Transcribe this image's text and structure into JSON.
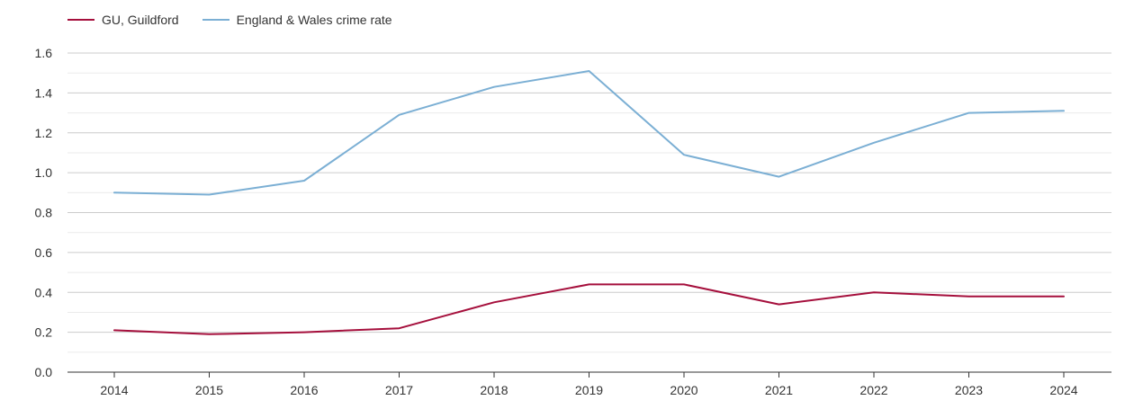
{
  "chart_data": {
    "type": "line",
    "title": "",
    "xlabel": "",
    "ylabel": "",
    "categories": [
      "2014",
      "2015",
      "2016",
      "2017",
      "2018",
      "2019",
      "2020",
      "2021",
      "2022",
      "2023",
      "2024"
    ],
    "ylim": [
      0,
      1.6
    ],
    "yticks": [
      "0.0",
      "0.2",
      "0.4",
      "0.6",
      "0.8",
      "1.0",
      "1.2",
      "1.4",
      "1.6"
    ],
    "grid": true,
    "legend_position": "top-left",
    "series": [
      {
        "name": "GU, Guildford",
        "color": "#a50f3c",
        "values": [
          0.21,
          0.19,
          0.2,
          0.22,
          0.35,
          0.44,
          0.44,
          0.34,
          0.4,
          0.38,
          0.38
        ]
      },
      {
        "name": "England & Wales crime rate",
        "color": "#7bafd4",
        "values": [
          0.9,
          0.89,
          0.96,
          1.29,
          1.43,
          1.51,
          1.09,
          0.98,
          1.15,
          1.3,
          1.31
        ]
      }
    ]
  }
}
